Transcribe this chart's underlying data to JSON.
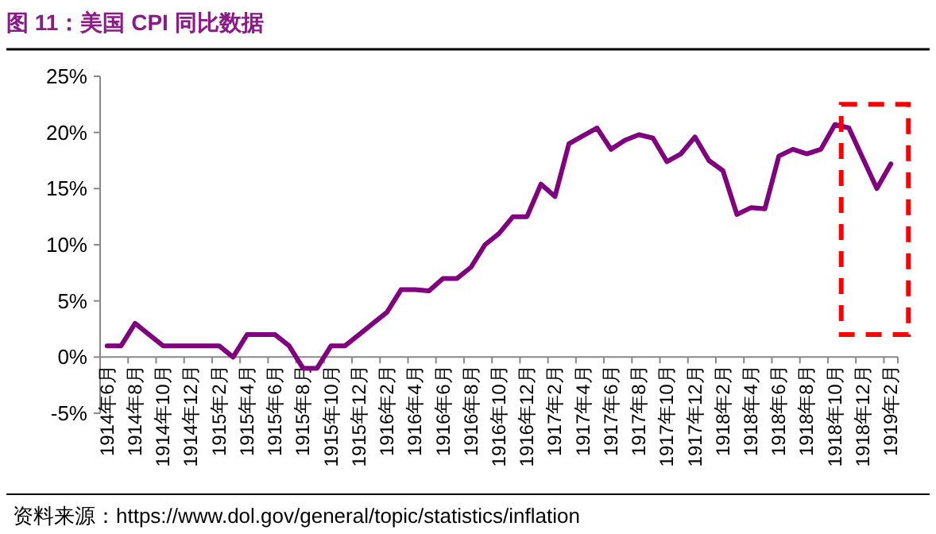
{
  "chart_data": {
    "type": "line",
    "title": "图 11：美国 CPI 同比数据",
    "annotations": [
      "资料来源：https://www.dol.gov/general/topic/statistics/inflation"
    ],
    "categories": [
      "1914年6月",
      null,
      "1914年8月",
      null,
      "1914年10月",
      null,
      "1914年12月",
      null,
      "1915年2月",
      null,
      "1915年4月",
      null,
      "1915年6月",
      null,
      "1915年8月",
      null,
      "1915年10月",
      null,
      "1915年12月",
      null,
      "1916年2月",
      null,
      "1916年4月",
      null,
      "1916年6月",
      null,
      "1916年8月",
      null,
      "1916年10月",
      null,
      "1916年12月",
      null,
      "1917年2月",
      null,
      "1917年4月",
      null,
      "1917年6月",
      null,
      "1917年8月",
      null,
      "1917年10月",
      null,
      "1917年12月",
      null,
      "1918年2月",
      null,
      "1918年4月",
      null,
      "1918年6月",
      null,
      "1918年8月",
      null,
      "1918年10月",
      null,
      "1918年12月",
      null,
      "1919年2月"
    ],
    "series": [
      {
        "color": "#800080",
        "values": [
          1,
          1,
          3,
          2,
          1,
          1,
          1,
          1,
          1,
          0,
          2,
          2,
          2,
          1,
          -1,
          -1,
          1,
          1,
          2,
          3,
          4,
          6,
          6,
          5.9,
          7,
          7,
          8,
          10,
          11,
          12.5,
          12.5,
          15.4,
          14.3,
          19.0,
          19.7,
          20.4,
          18.5,
          19.3,
          19.8,
          19.5,
          17.4,
          18.1,
          19.6,
          17.5,
          16.6,
          12.7,
          13.3,
          13.2,
          17.9,
          18.5,
          18.1,
          18.5,
          20.7,
          20.4,
          17.7,
          15.0,
          17.2
        ]
      }
    ],
    "ylim": [
      -5,
      25
    ],
    "yticks": [
      {
        "value": -5,
        "label": "-5%"
      },
      {
        "value": 0,
        "label": "0%"
      },
      {
        "value": 5,
        "label": "5%"
      },
      {
        "value": 10,
        "label": "10%"
      },
      {
        "value": 15,
        "label": "15%"
      },
      {
        "value": 20,
        "label": "20%"
      },
      {
        "value": 25,
        "label": "25%"
      }
    ],
    "line_style": "solid"
  }
}
